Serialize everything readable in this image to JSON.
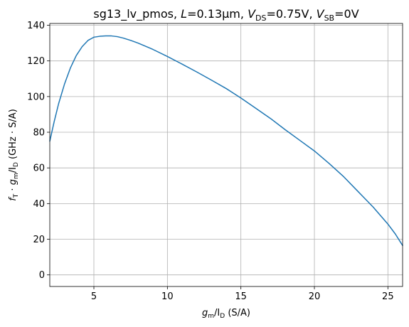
{
  "chart_data": {
    "type": "line",
    "title": {
      "prefix": "sg13_lv_pmos, ",
      "L_symbol": "L",
      "L_value": "=0.13µm, ",
      "vds_symbol": "V",
      "vds_sub": "DS",
      "vds_value": "=0.75V, ",
      "vsb_symbol": "V",
      "vsb_sub": "SB",
      "vsb_value": "=0V"
    },
    "xlabel": {
      "g": "g",
      "g_sub": "m",
      "slash_i": "/I",
      "i_sub": "D",
      "unit": " (S/A)"
    },
    "ylabel": {
      "f": "f",
      "f_sub": "T",
      "dot": " · ",
      "g": "g",
      "g_sub": "m",
      "slash_i": "/I",
      "i_sub": "D",
      "unit": " (GHz · S/A)"
    },
    "xlim": [
      2,
      26
    ],
    "ylim": [
      -6.5,
      141
    ],
    "xticks": [
      5,
      10,
      15,
      20,
      25
    ],
    "yticks": [
      0,
      20,
      40,
      60,
      80,
      100,
      120,
      140
    ],
    "grid": true,
    "colors": {
      "series": "#1f77b4",
      "grid": "#b0b0b0"
    },
    "series": [
      {
        "x": [
          2.0,
          2.3,
          2.6,
          3.0,
          3.4,
          3.8,
          4.2,
          4.6,
          5.0,
          5.4,
          5.8,
          6.2,
          6.6,
          7.0,
          7.5,
          8.0,
          9.0,
          10.0,
          11.0,
          12.0,
          13.0,
          14.0,
          15.0,
          16.0,
          17.0,
          18.0,
          19.0,
          20.0,
          21.0,
          22.0,
          23.0,
          24.0,
          25.0,
          25.5,
          26.0
        ],
        "y": [
          75,
          86,
          96,
          107,
          116,
          123,
          128,
          131.5,
          133.3,
          133.8,
          134.0,
          134.0,
          133.6,
          132.8,
          131.5,
          130.0,
          126.5,
          122.5,
          118.2,
          113.8,
          109.2,
          104.5,
          99.2,
          93.5,
          87.8,
          81.5,
          75.5,
          69.5,
          62.5,
          55.0,
          46.5,
          38.0,
          28.5,
          23.0,
          16.5
        ]
      }
    ]
  }
}
